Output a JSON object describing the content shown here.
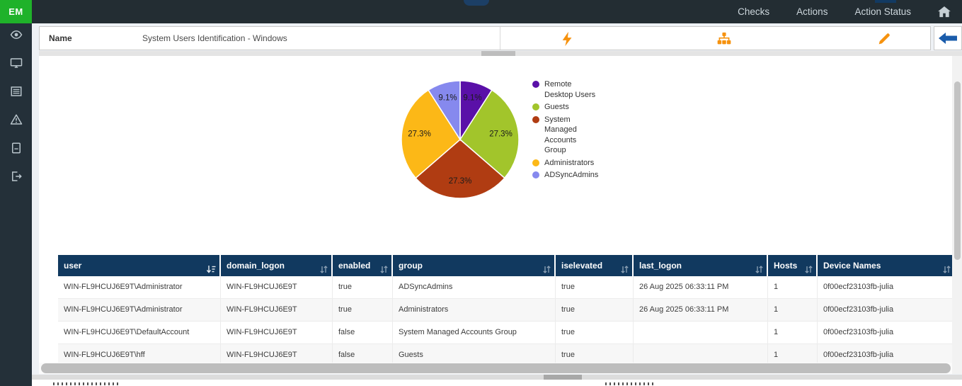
{
  "topbar": {
    "logo": "EM",
    "menu_items": [
      "Checks",
      "Actions",
      "Action Status"
    ],
    "home_icon": "home-icon"
  },
  "sidebar": {
    "icons": [
      "eye",
      "monitor",
      "list",
      "warning-triangle",
      "notebook",
      "sign-out"
    ]
  },
  "header": {
    "name_label": "Name",
    "name_value": "System Users Identification - Windows",
    "action_icons": [
      "lightning",
      "sitemap",
      "pencil"
    ],
    "back_icon": "left-arrow"
  },
  "chart_data": {
    "type": "pie",
    "title": "",
    "legend_position": "right",
    "start_angle_deg": -90,
    "direction": "clockwise",
    "series": [
      {
        "label": "Remote Desktop Users",
        "legend_lines": [
          "Remote",
          "Desktop Users"
        ],
        "value": 9.1,
        "display": "9.1%",
        "color": "#5a10a8"
      },
      {
        "label": "Guests",
        "legend_lines": [
          "Guests"
        ],
        "value": 27.3,
        "display": "27.3%",
        "color": "#a2c52b"
      },
      {
        "label": "System Managed Accounts Group",
        "legend_lines": [
          "System",
          "Managed",
          "Accounts",
          "Group"
        ],
        "value": 27.3,
        "display": "27.3%",
        "color": "#b03c12"
      },
      {
        "label": "Administrators",
        "legend_lines": [
          "Administrators"
        ],
        "value": 27.3,
        "display": "27.3%",
        "color": "#fcb817"
      },
      {
        "label": "ADSyncAdmins",
        "legend_lines": [
          "ADSyncAdmins"
        ],
        "value": 9.1,
        "display": "9.1%",
        "color": "#8689ee"
      }
    ]
  },
  "table": {
    "columns": [
      {
        "label": "user",
        "sort": "active"
      },
      {
        "label": "domain_logon",
        "sort": "both"
      },
      {
        "label": "enabled",
        "sort": "both"
      },
      {
        "label": "group",
        "sort": "both"
      },
      {
        "label": "iselevated",
        "sort": "both"
      },
      {
        "label": "last_logon",
        "sort": "both"
      },
      {
        "label": "Hosts",
        "sort": "both"
      },
      {
        "label": "Device Names",
        "sort": "both"
      }
    ],
    "rows": [
      [
        "WIN-FL9HCUJ6E9T\\Administrator",
        "WIN-FL9HCUJ6E9T",
        "true",
        "ADSyncAdmins",
        "true",
        "26 Aug 2025 06:33:11 PM",
        "1",
        "0f00ecf23103fb-julia"
      ],
      [
        "WIN-FL9HCUJ6E9T\\Administrator",
        "WIN-FL9HCUJ6E9T",
        "true",
        "Administrators",
        "true",
        "26 Aug 2025 06:33:11 PM",
        "1",
        "0f00ecf23103fb-julia"
      ],
      [
        "WIN-FL9HCUJ6E9T\\DefaultAccount",
        "WIN-FL9HCUJ6E9T",
        "false",
        "System Managed Accounts Group",
        "true",
        "",
        "1",
        "0f00ecf23103fb-julia"
      ],
      [
        "WIN-FL9HCUJ6E9T\\hff",
        "WIN-FL9HCUJ6E9T",
        "false",
        "Guests",
        "true",
        "",
        "1",
        "0f00ecf23103fb-julia"
      ]
    ]
  },
  "colors": {
    "topbar_bg": "#232d33",
    "logo_bg": "#1fb22a",
    "sidebar_bg": "#243039",
    "page_bg": "#eef1f5",
    "table_header_bg": "#11395f",
    "accent_orange": "#f6920e",
    "back_arrow_blue": "#1a5cab"
  }
}
